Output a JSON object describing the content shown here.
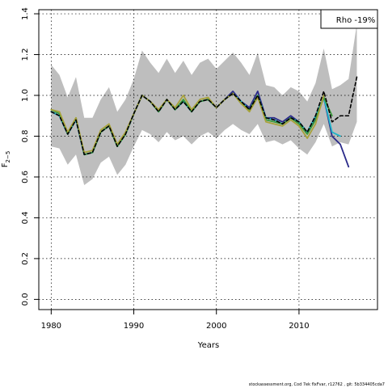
{
  "footer": "stockassessment.org, Cod 7ek flxFvar, r12762 , git: 5b334405cda7",
  "chart_data": {
    "type": "line",
    "title": "",
    "xlabel": "Years",
    "ylabel": "F2-5",
    "ylabel_main": "F",
    "ylabel_sub": "2−5",
    "xlim": [
      1978.5,
      2019.5
    ],
    "ylim": [
      -0.05,
      1.42
    ],
    "xticks": [
      1980,
      1990,
      2000,
      2010
    ],
    "yticks": [
      0.0,
      0.2,
      0.4,
      0.6,
      0.8,
      1.0,
      1.2,
      1.4
    ],
    "grid": true,
    "legend_position": "top-right",
    "legend_label": "Rho -19%",
    "band_color": "#bebebe",
    "band_upper": {
      "x": [
        1980,
        1981,
        1982,
        1983,
        1984,
        1985,
        1986,
        1987,
        1988,
        1989,
        1990,
        1991,
        1992,
        1993,
        1994,
        1995,
        1996,
        1997,
        1998,
        1999,
        2000,
        2001,
        2002,
        2003,
        2004,
        2005,
        2006,
        2007,
        2008,
        2009,
        2010,
        2011,
        2012,
        2013,
        2014,
        2015,
        2016,
        2017
      ],
      "values": [
        1.15,
        1.1,
        0.99,
        1.09,
        0.89,
        0.89,
        0.98,
        1.04,
        0.92,
        0.98,
        1.08,
        1.22,
        1.16,
        1.11,
        1.18,
        1.11,
        1.17,
        1.1,
        1.16,
        1.18,
        1.13,
        1.17,
        1.21,
        1.16,
        1.1,
        1.21,
        1.05,
        1.04,
        1.0,
        1.04,
        1.02,
        0.97,
        1.06,
        1.23,
        1.03,
        1.05,
        1.08,
        1.35
      ]
    },
    "band_lower": {
      "x": [
        1980,
        1981,
        1982,
        1983,
        1984,
        1985,
        1986,
        1987,
        1988,
        1989,
        1990,
        1991,
        1992,
        1993,
        1994,
        1995,
        1996,
        1997,
        1998,
        1999,
        2000,
        2001,
        2002,
        2003,
        2004,
        2005,
        2006,
        2007,
        2008,
        2009,
        2010,
        2011,
        2012,
        2013,
        2014,
        2015,
        2016,
        2017
      ],
      "values": [
        0.75,
        0.74,
        0.66,
        0.71,
        0.56,
        0.59,
        0.67,
        0.7,
        0.61,
        0.66,
        0.75,
        0.83,
        0.81,
        0.77,
        0.82,
        0.78,
        0.8,
        0.76,
        0.8,
        0.82,
        0.79,
        0.83,
        0.86,
        0.83,
        0.81,
        0.86,
        0.77,
        0.78,
        0.76,
        0.78,
        0.74,
        0.71,
        0.77,
        0.86,
        0.75,
        0.77,
        0.76,
        0.87
      ]
    },
    "series": [
      {
        "x": [
          1980,
          1981,
          1982,
          1983,
          1984,
          1985,
          1986,
          1987,
          1988,
          1989,
          1990,
          1991,
          1992,
          1993,
          1994,
          1995,
          1996,
          1997,
          1998,
          1999,
          2000,
          2001,
          2002,
          2003,
          2004,
          2005,
          2006,
          2007,
          2008,
          2009,
          2010,
          2011,
          2012,
          2013,
          2014,
          2015,
          2016
        ],
        "values": [
          0.92,
          0.9,
          0.81,
          0.88,
          0.71,
          0.72,
          0.82,
          0.85,
          0.75,
          0.81,
          0.91,
          1.0,
          0.97,
          0.92,
          0.98,
          0.93,
          0.97,
          0.92,
          0.97,
          0.98,
          0.94,
          0.98,
          1.02,
          0.97,
          0.94,
          1.02,
          0.89,
          0.89,
          0.87,
          0.9,
          0.87,
          0.82,
          0.89,
          0.99,
          0.8,
          0.76,
          0.65
        ],
        "color": "#2a2a8a",
        "width": 1.8,
        "dash": ""
      },
      {
        "x": [
          1980,
          1981,
          1982,
          1983,
          1984,
          1985,
          1986,
          1987,
          1988,
          1989,
          1990,
          1991,
          1992,
          1993,
          1994,
          1995,
          1996,
          1997,
          1998,
          1999,
          2000,
          2001,
          2002,
          2003,
          2004,
          2005,
          2006,
          2007,
          2008,
          2009,
          2010,
          2011,
          2012,
          2013,
          2014,
          2015
        ],
        "values": [
          0.92,
          0.9,
          0.81,
          0.88,
          0.71,
          0.72,
          0.82,
          0.85,
          0.75,
          0.81,
          0.91,
          1.0,
          0.97,
          0.92,
          0.98,
          0.93,
          0.97,
          0.92,
          0.97,
          0.98,
          0.94,
          0.98,
          1.01,
          0.97,
          0.93,
          1.0,
          0.89,
          0.88,
          0.86,
          0.89,
          0.87,
          0.82,
          0.9,
          0.99,
          0.82,
          0.8
        ],
        "color": "#1eb4c8",
        "width": 1.8,
        "dash": ""
      },
      {
        "x": [
          1980,
          1981,
          1982,
          1983,
          1984,
          1985,
          1986,
          1987,
          1988,
          1989,
          1990,
          1991,
          1992,
          1993,
          1994,
          1995,
          1996,
          1997,
          1998,
          1999,
          2000,
          2001,
          2002,
          2003,
          2004,
          2005,
          2006,
          2007,
          2008,
          2009,
          2010,
          2011,
          2012,
          2013,
          2014
        ],
        "values": [
          0.93,
          0.91,
          0.81,
          0.89,
          0.71,
          0.72,
          0.82,
          0.85,
          0.75,
          0.81,
          0.91,
          1.0,
          0.97,
          0.92,
          0.98,
          0.93,
          0.98,
          0.92,
          0.97,
          0.98,
          0.94,
          0.98,
          1.01,
          0.96,
          0.93,
          1.0,
          0.88,
          0.87,
          0.86,
          0.89,
          0.86,
          0.81,
          0.88,
          0.99,
          0.9
        ],
        "color": "#3a9a3a",
        "width": 1.8,
        "dash": ""
      },
      {
        "x": [
          1980,
          1981,
          1982,
          1983,
          1984,
          1985,
          1986,
          1987,
          1988,
          1989,
          1990,
          1991,
          1992,
          1993,
          1994,
          1995,
          1996,
          1997,
          1998,
          1999,
          2000,
          2001,
          2002,
          2003,
          2004,
          2005,
          2006,
          2007,
          2008,
          2009,
          2010,
          2011,
          2012,
          2013
        ],
        "values": [
          0.93,
          0.92,
          0.82,
          0.89,
          0.72,
          0.73,
          0.83,
          0.86,
          0.76,
          0.82,
          0.91,
          1.0,
          0.97,
          0.93,
          0.98,
          0.94,
          1.0,
          0.93,
          0.98,
          0.99,
          0.94,
          0.98,
          1.01,
          0.96,
          0.92,
          0.99,
          0.87,
          0.86,
          0.85,
          0.88,
          0.85,
          0.79,
          0.86,
          1.0
        ],
        "color": "#a8a23a",
        "width": 1.8,
        "dash": ""
      },
      {
        "x": [
          1980,
          1981,
          1982,
          1983,
          1984,
          1985,
          1986,
          1987,
          1988,
          1989,
          1990,
          1991,
          1992,
          1993,
          1994,
          1995,
          1996,
          1997,
          1998,
          1999,
          2000,
          2001,
          2002,
          2003,
          2004,
          2005,
          2006,
          2007,
          2008,
          2009,
          2010,
          2011,
          2012,
          2013,
          2014,
          2015,
          2016,
          2017
        ],
        "values": [
          0.92,
          0.9,
          0.81,
          0.88,
          0.71,
          0.72,
          0.82,
          0.85,
          0.75,
          0.81,
          0.91,
          1.0,
          0.97,
          0.92,
          0.98,
          0.93,
          0.97,
          0.92,
          0.97,
          0.98,
          0.94,
          0.98,
          1.01,
          0.97,
          0.93,
          1.0,
          0.89,
          0.88,
          0.86,
          0.89,
          0.87,
          0.82,
          0.9,
          1.02,
          0.87,
          0.9,
          0.9,
          1.09
        ],
        "color": "#000000",
        "width": 1.6,
        "dash": "4,3"
      }
    ]
  }
}
